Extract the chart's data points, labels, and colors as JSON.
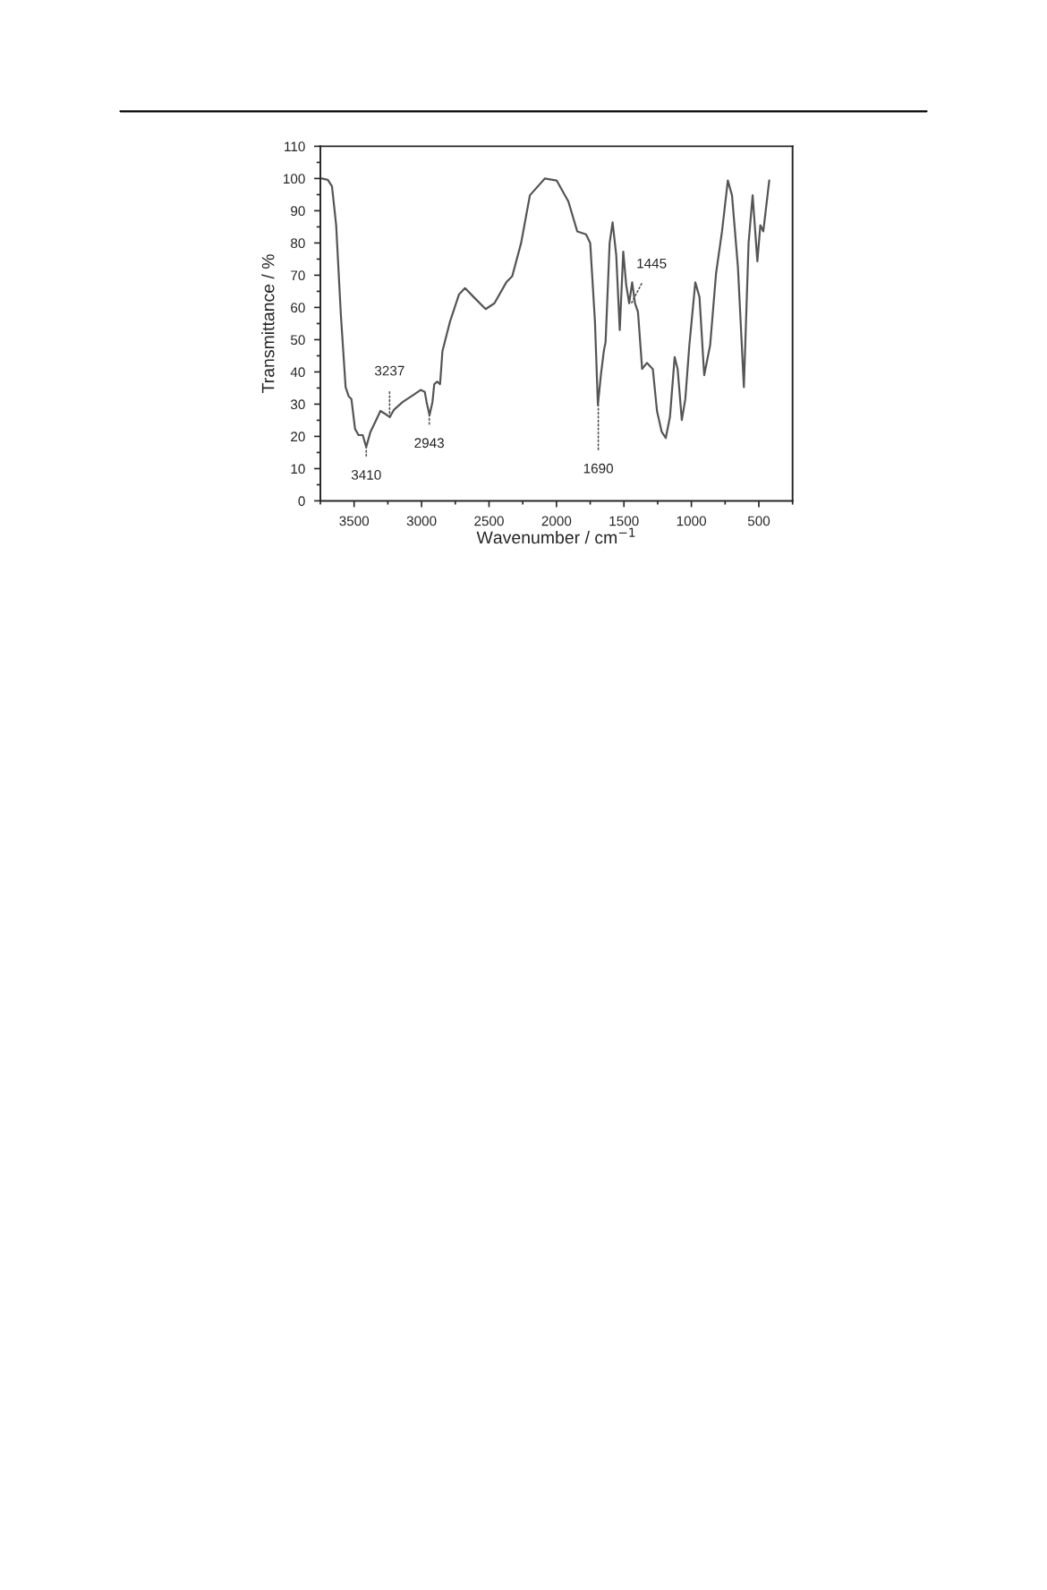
{
  "chart_data": {
    "type": "line",
    "xlabel": "Wavenumber / cm$^{−1}$",
    "ylabel": "Transmittance / %",
    "xlim": [
      3750,
      250
    ],
    "ylim": [
      0,
      110
    ],
    "xticks": [
      3500,
      3000,
      2500,
      2000,
      1500,
      1000,
      500
    ],
    "yticks": [
      0,
      10,
      20,
      30,
      40,
      50,
      60,
      70,
      80,
      90,
      100,
      110
    ],
    "grid": false,
    "marker": "none",
    "line_style": "solid",
    "series": [
      {
        "color": "#555555",
        "x": [
          3739,
          3695,
          3664,
          3633,
          3598,
          3563,
          3541,
          3520,
          3493,
          3467,
          3436,
          3410,
          3379,
          3336,
          3305,
          3270,
          3235,
          3204,
          3139,
          3073,
          3007,
          2976,
          2963,
          2941,
          2919,
          2906,
          2884,
          2863,
          2845,
          2788,
          2722,
          2678,
          2613,
          2525,
          2460,
          2372,
          2328,
          2262,
          2197,
          2087,
          1999,
          1912,
          1846,
          1781,
          1750,
          1715,
          1693,
          1671,
          1649,
          1636,
          1606,
          1584,
          1557,
          1531,
          1505,
          1483,
          1461,
          1439,
          1418,
          1396,
          1365,
          1330,
          1286,
          1255,
          1220,
          1190,
          1159,
          1124,
          1102,
          1071,
          1045,
          1015,
          971,
          940,
          905,
          861,
          817,
          773,
          730,
          699,
          655,
          611,
          576,
          546,
          511,
          489,
          467,
          423
        ],
        "values": [
          100,
          99.6,
          97.6,
          85.5,
          57.6,
          35.3,
          32.5,
          31.6,
          22.3,
          20.4,
          20.4,
          16.7,
          21.4,
          25.1,
          27.9,
          27,
          26,
          28.3,
          30.7,
          32.5,
          34.4,
          33.8,
          30.7,
          26.6,
          30.7,
          36.2,
          37,
          36.2,
          46.5,
          55.8,
          64.1,
          66,
          63.2,
          59.5,
          61.3,
          67.8,
          69.7,
          80,
          94.8,
          100,
          99.4,
          92.9,
          83.6,
          82.7,
          80,
          55.8,
          29.7,
          39,
          46.5,
          49.3,
          80,
          86.4,
          76.2,
          53,
          77.3,
          66.9,
          61.3,
          67.8,
          61.3,
          58.6,
          40.9,
          42.8,
          40.9,
          27.9,
          21.4,
          19.5,
          26,
          44.6,
          40.9,
          25.1,
          31.6,
          48.3,
          67.8,
          63.2,
          39,
          48.3,
          70.6,
          83.6,
          99.4,
          94.8,
          72.5,
          35.3,
          80,
          94.8,
          74.3,
          85.5,
          83.6,
          99.4
        ]
      }
    ],
    "annotations": [
      {
        "text": "3410",
        "x": 3410,
        "y": 16.7
      },
      {
        "text": "3237",
        "x": 3237,
        "y": 26
      },
      {
        "text": "2943",
        "x": 2943,
        "y": 26.6
      },
      {
        "text": "1690",
        "x": 1690,
        "y": 29.7
      },
      {
        "text": "1445",
        "x": 1445,
        "y": 61.3
      }
    ]
  }
}
